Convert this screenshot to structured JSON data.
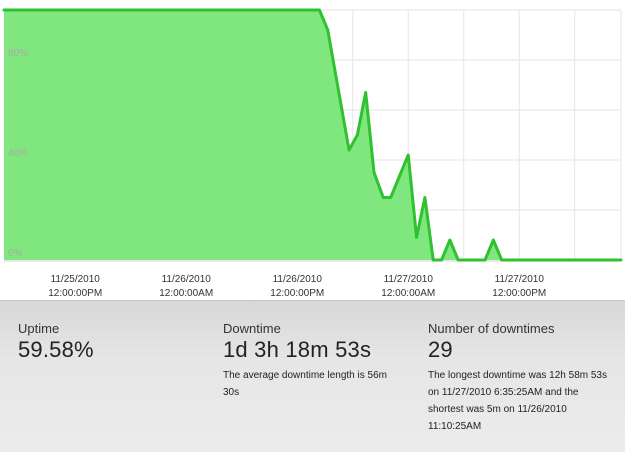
{
  "chart_data": {
    "type": "area",
    "title": "",
    "xlabel": "",
    "ylabel": "",
    "ylim": [
      0,
      100
    ],
    "grid": true,
    "color": "#2fc12f",
    "fill_color": "#80e67e",
    "grid_color": "#e6e6e6",
    "y_ticks": [
      {
        "value": 0,
        "label": "0%"
      },
      {
        "value": 40,
        "label": "40%"
      },
      {
        "value": 80,
        "label": "80%"
      }
    ],
    "x_ticks": [
      {
        "date": "11/25/2010",
        "time": "12:00:00PM",
        "hour": 12
      },
      {
        "date": "11/26/2010",
        "time": "12:00:00AM",
        "hour": 24
      },
      {
        "date": "11/26/2010",
        "time": "12:00:00PM",
        "hour": 36
      },
      {
        "date": "11/27/2010",
        "time": "12:00:00AM",
        "hour": 48
      },
      {
        "date": "11/27/2010",
        "time": "12:00:00PM",
        "hour": 60
      }
    ],
    "x_range": [
      4.3,
      71
    ],
    "series": [
      {
        "values": [
          [
            4.3,
            100
          ],
          [
            38.4,
            100
          ],
          [
            39.3,
            92
          ],
          [
            41.6,
            44
          ],
          [
            42.5,
            50
          ],
          [
            43.4,
            67
          ],
          [
            44.3,
            35
          ],
          [
            45.3,
            25
          ],
          [
            46.1,
            25
          ],
          [
            48,
            42
          ],
          [
            48.9,
            9
          ],
          [
            49.8,
            25
          ],
          [
            50.7,
            0
          ],
          [
            51.6,
            0
          ],
          [
            52.5,
            8
          ],
          [
            53.4,
            0
          ],
          [
            56.3,
            0
          ],
          [
            57.2,
            8
          ],
          [
            58.1,
            0
          ],
          [
            71,
            0
          ]
        ]
      }
    ]
  },
  "stats": {
    "uptime": {
      "label": "Uptime",
      "value": "59.58%"
    },
    "downtime": {
      "label": "Downtime",
      "value": "1d 3h 18m 53s",
      "note": "The average downtime length is 56m 30s"
    },
    "downtimes": {
      "label": "Number of downtimes",
      "value": "29",
      "note": "The longest downtime was 12h 58m 53s on 11/27/2010 6:35:25AM and the shortest was 5m on 11/26/2010 11:10:25AM"
    }
  }
}
